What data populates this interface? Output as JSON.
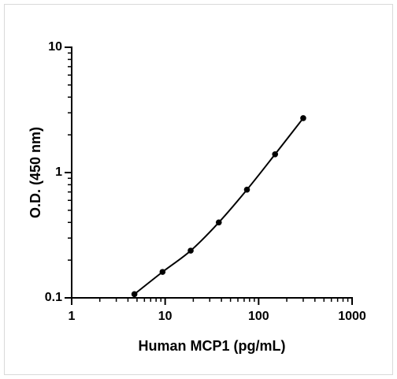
{
  "chart_data": {
    "type": "scatter",
    "xlabel": "Human MCP1 (pg/mL)",
    "ylabel": "O.D. (450 nm)",
    "x": [
      4.69,
      9.375,
      18.75,
      37.5,
      75,
      150,
      300
    ],
    "values": [
      0.107,
      0.161,
      0.238,
      0.4,
      0.73,
      1.4,
      2.72
    ],
    "color": "#000000",
    "xscale": "log",
    "yscale": "log",
    "xlim": [
      1,
      1000
    ],
    "xticks": [
      1,
      10,
      100,
      1000
    ],
    "ylim": [
      0.1,
      10
    ],
    "yticks": [
      0.1,
      1,
      10
    ]
  }
}
